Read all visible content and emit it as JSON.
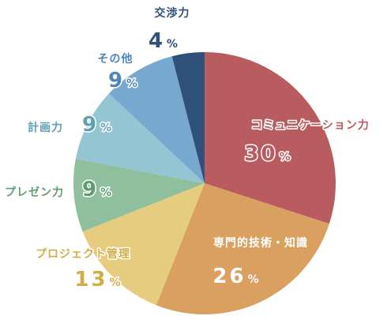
{
  "chart_data": {
    "type": "pie",
    "start_angle_deg": 0,
    "direction": "clockwise",
    "slices": [
      {
        "label": "コミュニケーション力",
        "value": 30,
        "value_text": "30",
        "unit": "%",
        "color": "#b85c60",
        "text_color": "#b85c60"
      },
      {
        "label": "専門的技術・知識",
        "value": 26,
        "value_text": "26",
        "unit": "%",
        "color": "#d9a060",
        "text_color": "#ffffff"
      },
      {
        "label": "プロジェクト管理",
        "value": 13,
        "value_text": "13",
        "unit": "%",
        "color": "#e5cc7e",
        "text_color": "#d2ad45"
      },
      {
        "label": "プレゼン力",
        "value": 9,
        "value_text": "9",
        "unit": "%",
        "color": "#8fbf9c",
        "text_color": "#5f9c70"
      },
      {
        "label": "計画力",
        "value": 9,
        "value_text": "9",
        "unit": "%",
        "color": "#93c5d3",
        "text_color": "#5f9fb2"
      },
      {
        "label": "その他",
        "value": 9,
        "value_text": "9",
        "unit": "%",
        "color": "#76a8d0",
        "text_color": "#4f86b8"
      },
      {
        "label": "交渉力",
        "value": 4,
        "value_text": "4",
        "unit": "%",
        "color": "#2f5078",
        "text_color": "#2f5078"
      }
    ]
  }
}
